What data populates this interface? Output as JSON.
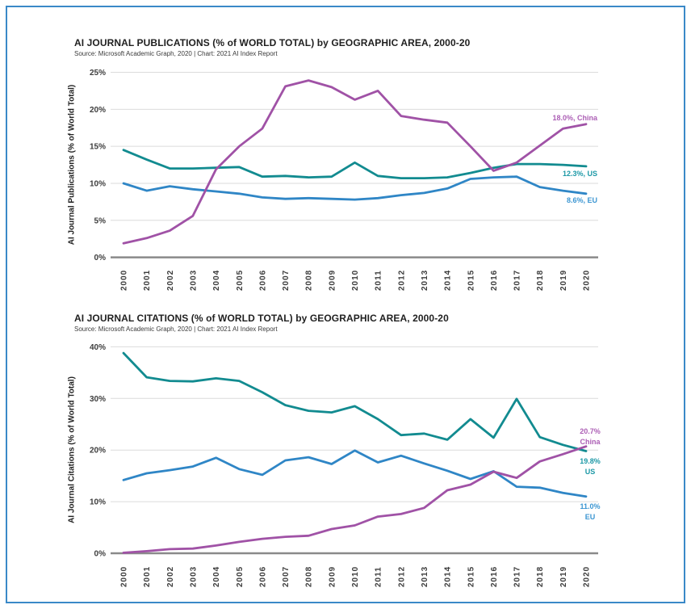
{
  "page": {
    "background_color": "#ffffff",
    "border_color": "#3A89C8"
  },
  "chart_data": [
    {
      "type": "line",
      "title": "AI JOURNAL PUBLICATIONS (% of WORLD TOTAL) by GEOGRAPHIC AREA, 2000-20",
      "source": "Source: Microsoft Academic Graph, 2020 | Chart: 2021 AI Index Report",
      "ylabel": "AI Journal Publications (% of World Total)",
      "xlabel": "",
      "x": [
        2000,
        2001,
        2002,
        2003,
        2004,
        2005,
        2006,
        2007,
        2008,
        2009,
        2010,
        2011,
        2012,
        2013,
        2014,
        2015,
        2016,
        2017,
        2018,
        2019,
        2020
      ],
      "ylim": [
        0,
        25
      ],
      "yticks": [
        0,
        5,
        10,
        15,
        20,
        25
      ],
      "ytick_labels": [
        "0%",
        "5%",
        "10%",
        "15%",
        "20%",
        "25%"
      ],
      "grid": true,
      "legend_position": "end-of-line labels",
      "series": [
        {
          "name": "China",
          "color": "#A052A6",
          "label_color": "#AC5FB5",
          "end_label": [
            "18.0%, China"
          ],
          "values": [
            1.9,
            2.6,
            3.6,
            5.6,
            11.9,
            15.0,
            17.4,
            23.1,
            23.9,
            23.0,
            21.3,
            22.5,
            19.1,
            18.6,
            18.2,
            15.0,
            11.7,
            12.8,
            15.1,
            17.4,
            18.0
          ]
        },
        {
          "name": "US",
          "color": "#128B90",
          "label_color": "#1C98A6",
          "end_label": [
            "12.3%, US"
          ],
          "values": [
            14.5,
            13.2,
            12.0,
            12.0,
            12.1,
            12.2,
            10.9,
            11.0,
            10.8,
            10.9,
            12.8,
            11.0,
            10.7,
            10.7,
            10.8,
            11.4,
            12.1,
            12.6,
            12.6,
            12.5,
            12.3
          ]
        },
        {
          "name": "EU",
          "color": "#2F86C6",
          "label_color": "#3C96D2",
          "end_label": [
            "8.6%, EU"
          ],
          "values": [
            10.0,
            9.0,
            9.6,
            9.2,
            8.9,
            8.6,
            8.1,
            7.9,
            8.0,
            7.9,
            7.8,
            8.0,
            8.4,
            8.7,
            9.3,
            10.6,
            10.8,
            10.9,
            9.5,
            9.0,
            8.6
          ]
        }
      ]
    },
    {
      "type": "line",
      "title": "AI JOURNAL CITATIONS (% of WORLD TOTAL) by GEOGRAPHIC AREA, 2000-20",
      "source": "Source: Microsoft Academic Graph, 2020 | Chart: 2021 AI Index Report",
      "ylabel": "AI Journal Citations (% of World Total)",
      "xlabel": "",
      "x": [
        2000,
        2001,
        2002,
        2003,
        2004,
        2005,
        2006,
        2007,
        2008,
        2009,
        2010,
        2011,
        2012,
        2013,
        2014,
        2015,
        2016,
        2017,
        2018,
        2019,
        2020
      ],
      "ylim": [
        0,
        40
      ],
      "yticks": [
        0,
        10,
        20,
        30,
        40
      ],
      "ytick_labels": [
        "0%",
        "10%",
        "20%",
        "30%",
        "40%"
      ],
      "grid": true,
      "legend_position": "end-of-line labels",
      "series": [
        {
          "name": "China",
          "color": "#A052A6",
          "label_color": "#AC5FB5",
          "end_label": [
            "20.7%",
            "China"
          ],
          "values": [
            0.1,
            0.4,
            0.8,
            0.9,
            1.5,
            2.2,
            2.8,
            3.2,
            3.4,
            4.7,
            5.4,
            7.1,
            7.6,
            8.8,
            12.2,
            13.3,
            15.8,
            14.6,
            17.8,
            19.2,
            20.7
          ]
        },
        {
          "name": "US",
          "color": "#128B90",
          "label_color": "#1C98A6",
          "end_label": [
            "19.8%",
            "US"
          ],
          "values": [
            38.8,
            34.1,
            33.4,
            33.3,
            33.9,
            33.4,
            31.2,
            28.7,
            27.6,
            27.3,
            28.5,
            26.0,
            22.9,
            23.2,
            22.0,
            26.0,
            22.4,
            29.9,
            22.5,
            21.0,
            19.8
          ]
        },
        {
          "name": "EU",
          "color": "#2F86C6",
          "label_color": "#3C96D2",
          "end_label": [
            "11.0%",
            "EU"
          ],
          "values": [
            14.2,
            15.5,
            16.1,
            16.8,
            18.5,
            16.3,
            15.2,
            18.0,
            18.6,
            17.3,
            19.9,
            17.6,
            18.9,
            17.4,
            16.0,
            14.4,
            15.9,
            12.9,
            12.7,
            11.7,
            11.0
          ]
        }
      ]
    }
  ]
}
